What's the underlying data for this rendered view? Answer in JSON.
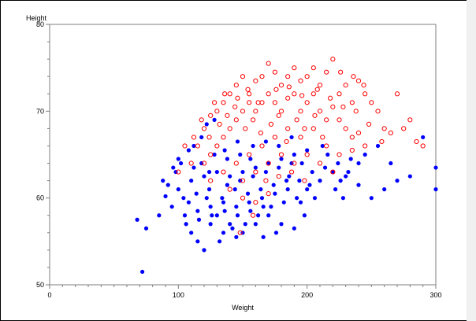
{
  "chart_data": {
    "type": "scatter",
    "xlabel": "Weight",
    "ylabel": "Height",
    "xlim": [
      0,
      300
    ],
    "ylim": [
      50,
      80
    ],
    "xticks": [
      0,
      100,
      200,
      300
    ],
    "yticks": [
      50,
      60,
      70,
      80
    ],
    "xminor_step": 10,
    "yminor_step": 2,
    "grid": false,
    "legend": "none",
    "series": [
      {
        "marker": "filled-circle",
        "color": "#0000ff",
        "values": [
          [
            72,
            51.5
          ],
          [
            68,
            57.5
          ],
          [
            75,
            56.5
          ],
          [
            85,
            58
          ],
          [
            90,
            60.2
          ],
          [
            95,
            59
          ],
          [
            88,
            62
          ],
          [
            100,
            61
          ],
          [
            105,
            58
          ],
          [
            110,
            56
          ],
          [
            115,
            55
          ],
          [
            120,
            54
          ],
          [
            125,
            57
          ],
          [
            130,
            58
          ],
          [
            135,
            56
          ],
          [
            140,
            57
          ],
          [
            145,
            55.5
          ],
          [
            150,
            56
          ],
          [
            160,
            57
          ],
          [
            170,
            58
          ],
          [
            180,
            57
          ],
          [
            190,
            56.5
          ],
          [
            195,
            59.5
          ],
          [
            200,
            61
          ],
          [
            210,
            62
          ],
          [
            220,
            63
          ],
          [
            230,
            62.5
          ],
          [
            240,
            61.5
          ],
          [
            250,
            60
          ],
          [
            260,
            61
          ],
          [
            270,
            62
          ],
          [
            280,
            62.5
          ],
          [
            290,
            67
          ],
          [
            300,
            61
          ],
          [
            300,
            63.5
          ],
          [
            98,
            63
          ],
          [
            102,
            64
          ],
          [
            108,
            65.5
          ],
          [
            112,
            66
          ],
          [
            118,
            67
          ],
          [
            122,
            68.5
          ],
          [
            128,
            69
          ],
          [
            104,
            60
          ],
          [
            114,
            60.5
          ],
          [
            124,
            61
          ],
          [
            134,
            60
          ],
          [
            144,
            61
          ],
          [
            154,
            60.5
          ],
          [
            164,
            61
          ],
          [
            174,
            61.5
          ],
          [
            184,
            62
          ],
          [
            194,
            62
          ],
          [
            204,
            63
          ],
          [
            214,
            63.5
          ],
          [
            224,
            64
          ],
          [
            234,
            64.5
          ],
          [
            110,
            62
          ],
          [
            120,
            62.5
          ],
          [
            130,
            63
          ],
          [
            140,
            62.5
          ],
          [
            150,
            63
          ],
          [
            160,
            63.5
          ],
          [
            170,
            64
          ],
          [
            180,
            64.5
          ],
          [
            190,
            65
          ],
          [
            200,
            65.5
          ],
          [
            115,
            58.5
          ],
          [
            125,
            59
          ],
          [
            135,
            59.5
          ],
          [
            145,
            59
          ],
          [
            155,
            59.5
          ],
          [
            165,
            60
          ],
          [
            175,
            60.5
          ],
          [
            185,
            61
          ],
          [
            106,
            57
          ],
          [
            116,
            57.5
          ],
          [
            126,
            58
          ],
          [
            136,
            58.5
          ],
          [
            146,
            58
          ],
          [
            156,
            58.5
          ],
          [
            166,
            59
          ],
          [
            92,
            61.5
          ],
          [
            96,
            63.5
          ],
          [
            118,
            64
          ],
          [
            128,
            65
          ],
          [
            138,
            64.5
          ],
          [
            148,
            65
          ],
          [
            158,
            66
          ],
          [
            168,
            66.5
          ],
          [
            178,
            66
          ],
          [
            188,
            67
          ],
          [
            245,
            65
          ],
          [
            255,
            66
          ],
          [
            265,
            64
          ],
          [
            240,
            64
          ],
          [
            228,
            60
          ],
          [
            212,
            66
          ],
          [
            206,
            60
          ],
          [
            198,
            58
          ],
          [
            176,
            56
          ],
          [
            166,
            55.5
          ],
          [
            132,
            55
          ],
          [
            142,
            56.5
          ],
          [
            152,
            57
          ],
          [
            162,
            58
          ],
          [
            172,
            59
          ],
          [
            182,
            59.5
          ],
          [
            192,
            60
          ],
          [
            202,
            61.5
          ],
          [
            222,
            61
          ],
          [
            232,
            63
          ],
          [
            108,
            59.5
          ],
          [
            122,
            60
          ],
          [
            138,
            61.5
          ],
          [
            148,
            62
          ],
          [
            158,
            62.5
          ],
          [
            168,
            63
          ],
          [
            178,
            63.5
          ],
          [
            188,
            64
          ],
          [
            100,
            64.5
          ],
          [
            112,
            63.5
          ],
          [
            124,
            63
          ],
          [
            136,
            65.5
          ],
          [
            146,
            66.5
          ],
          [
            156,
            64.5
          ],
          [
            186,
            62.5
          ],
          [
            196,
            64
          ],
          [
            216,
            65
          ],
          [
            226,
            62
          ]
        ]
      },
      {
        "marker": "open-circle",
        "color": "#ff0000",
        "values": [
          [
            100,
            63
          ],
          [
            110,
            64
          ],
          [
            115,
            66
          ],
          [
            120,
            68
          ],
          [
            125,
            69.5
          ],
          [
            130,
            70
          ],
          [
            135,
            71
          ],
          [
            140,
            72
          ],
          [
            145,
            73
          ],
          [
            150,
            74
          ],
          [
            155,
            72
          ],
          [
            160,
            73.5
          ],
          [
            165,
            74
          ],
          [
            170,
            75.5
          ],
          [
            175,
            74.5
          ],
          [
            180,
            73
          ],
          [
            185,
            74
          ],
          [
            190,
            75
          ],
          [
            195,
            73.5
          ],
          [
            200,
            74
          ],
          [
            205,
            75
          ],
          [
            210,
            73
          ],
          [
            215,
            74.5
          ],
          [
            220,
            76
          ],
          [
            225,
            72
          ],
          [
            230,
            73
          ],
          [
            235,
            71
          ],
          [
            240,
            73.5
          ],
          [
            245,
            72
          ],
          [
            250,
            71
          ],
          [
            255,
            70
          ],
          [
            260,
            68
          ],
          [
            265,
            67.5
          ],
          [
            270,
            72
          ],
          [
            275,
            68
          ],
          [
            280,
            69
          ],
          [
            285,
            66.5
          ],
          [
            290,
            66
          ],
          [
            120,
            64
          ],
          [
            125,
            65
          ],
          [
            130,
            66
          ],
          [
            135,
            67
          ],
          [
            140,
            68
          ],
          [
            145,
            69
          ],
          [
            150,
            70
          ],
          [
            155,
            71
          ],
          [
            160,
            70
          ],
          [
            165,
            71
          ],
          [
            170,
            72
          ],
          [
            175,
            71
          ],
          [
            180,
            70
          ],
          [
            185,
            71.5
          ],
          [
            190,
            72
          ],
          [
            195,
            70
          ],
          [
            200,
            71
          ],
          [
            205,
            72
          ],
          [
            210,
            70
          ],
          [
            215,
            69
          ],
          [
            220,
            70.5
          ],
          [
            225,
            69
          ],
          [
            230,
            68
          ],
          [
            235,
            67
          ],
          [
            240,
            67.5
          ],
          [
            245,
            66
          ],
          [
            125,
            62
          ],
          [
            135,
            63
          ],
          [
            145,
            64
          ],
          [
            155,
            65
          ],
          [
            165,
            66
          ],
          [
            175,
            67
          ],
          [
            185,
            68
          ],
          [
            195,
            67
          ],
          [
            205,
            68
          ],
          [
            215,
            66
          ],
          [
            225,
            65
          ],
          [
            235,
            65.5
          ],
          [
            140,
            61
          ],
          [
            150,
            62
          ],
          [
            160,
            63
          ],
          [
            170,
            64
          ],
          [
            180,
            65
          ],
          [
            190,
            64
          ],
          [
            200,
            65
          ],
          [
            210,
            64
          ],
          [
            220,
            63
          ],
          [
            105,
            66
          ],
          [
            112,
            67
          ],
          [
            118,
            69
          ],
          [
            124,
            67
          ],
          [
            132,
            68.5
          ],
          [
            138,
            69.5
          ],
          [
            144,
            70.5
          ],
          [
            152,
            68
          ],
          [
            158,
            69
          ],
          [
            164,
            67.5
          ],
          [
            172,
            68.5
          ],
          [
            178,
            69.5
          ],
          [
            184,
            66.5
          ],
          [
            192,
            69
          ],
          [
            198,
            68
          ],
          [
            206,
            69.5
          ],
          [
            212,
            67
          ],
          [
            150,
            60
          ],
          [
            160,
            59.5
          ],
          [
            170,
            60.5
          ],
          [
            148,
            56
          ],
          [
            158,
            58
          ],
          [
            168,
            62
          ],
          [
            178,
            62.5
          ],
          [
            188,
            63
          ],
          [
            198,
            62
          ],
          [
            128,
            71
          ],
          [
            136,
            72
          ],
          [
            146,
            71.5
          ],
          [
            154,
            72.5
          ],
          [
            162,
            71
          ],
          [
            176,
            72.5
          ],
          [
            186,
            72.8
          ],
          [
            196,
            71.8
          ],
          [
            208,
            72.5
          ],
          [
            218,
            71.5
          ],
          [
            228,
            70.5
          ],
          [
            238,
            70
          ],
          [
            248,
            68.5
          ],
          [
            258,
            66.5
          ],
          [
            236,
            74
          ],
          [
            244,
            73
          ],
          [
            226,
            74.5
          ]
        ]
      }
    ]
  }
}
